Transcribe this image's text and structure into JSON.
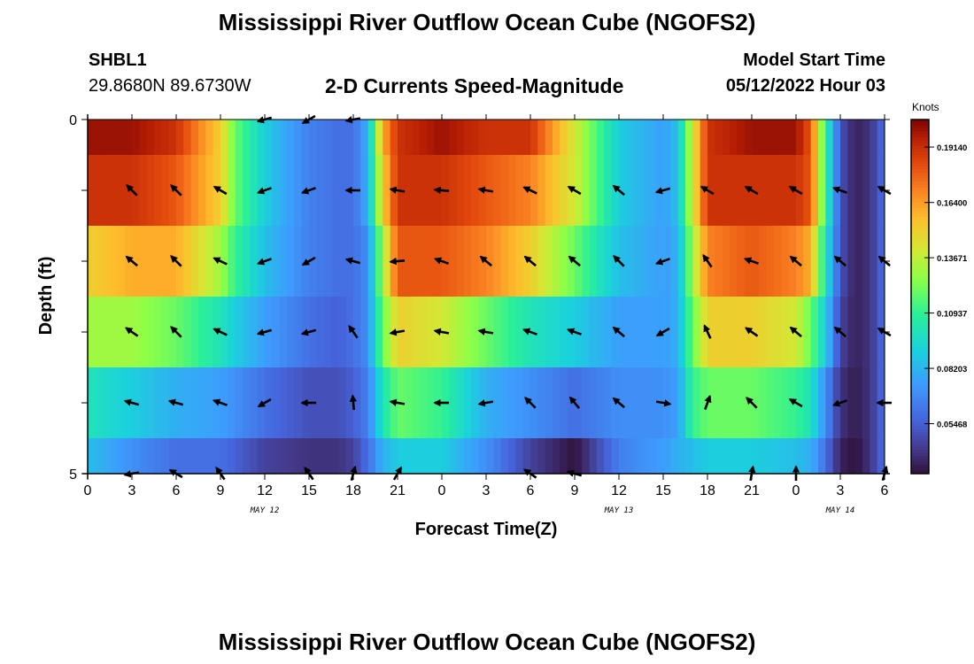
{
  "header": {
    "title": "Mississippi River Outflow Ocean Cube (NGOFS2)",
    "station": "SHBL1",
    "coords": "29.8680N  89.6730W",
    "subtitle": "2-D Currents Speed-Magnitude",
    "model_start_label": "Model Start Time",
    "model_start_value": "05/12/2022 Hour 03"
  },
  "footer": {
    "title": "Mississippi River Outflow Ocean Cube (NGOFS2)"
  },
  "chart_data": {
    "type": "heatmap",
    "title": "2-D Currents Speed-Magnitude",
    "xlabel": "Forecast Time(Z)",
    "ylabel": "Depth (ft)",
    "x_tick_labels": [
      "0",
      "3",
      "6",
      "9",
      "12",
      "15",
      "18",
      "21",
      "0",
      "3",
      "6",
      "9",
      "12",
      "15",
      "18",
      "21",
      "0",
      "3",
      "6"
    ],
    "x_range_hours": [
      0,
      54
    ],
    "date_labels": [
      {
        "text": "MAY 12",
        "hour": 12
      },
      {
        "text": "MAY 13",
        "hour": 36
      },
      {
        "text": "MAY 14",
        "hour": 51
      }
    ],
    "y_tick_labels": [
      "0",
      "5"
    ],
    "y_range": [
      0,
      5
    ],
    "colorbar": {
      "units": "Knots",
      "tick_labels": [
        "0.19140",
        "0.16400",
        "0.13671",
        "0.10937",
        "0.08203",
        "0.05468"
      ],
      "tick_values": [
        0.1914,
        0.164,
        0.13671,
        0.10937,
        0.08203,
        0.05468
      ],
      "range": [
        0.03,
        0.205
      ]
    },
    "anchors_hours": [
      0,
      3,
      6,
      9,
      10,
      12,
      15,
      17,
      18,
      19,
      20,
      21,
      24,
      27,
      30,
      33,
      36,
      39,
      40,
      41,
      42,
      45,
      48,
      49,
      50,
      51,
      52,
      53,
      54
    ],
    "speed_rows": [
      {
        "depth_band": "0.0-0.5",
        "speeds": [
          0.2,
          0.2,
          0.19,
          0.15,
          0.12,
          0.09,
          0.065,
          0.06,
          0.06,
          0.08,
          0.16,
          0.19,
          0.2,
          0.19,
          0.19,
          0.14,
          0.09,
          0.075,
          0.085,
          0.14,
          0.19,
          0.2,
          0.2,
          0.18,
          0.11,
          0.05,
          0.035,
          0.04,
          0.06
        ]
      },
      {
        "depth_band": "0.5-1.5",
        "speeds": [
          0.19,
          0.19,
          0.18,
          0.15,
          0.12,
          0.09,
          0.065,
          0.06,
          0.06,
          0.08,
          0.15,
          0.19,
          0.19,
          0.18,
          0.17,
          0.14,
          0.09,
          0.075,
          0.085,
          0.14,
          0.19,
          0.19,
          0.19,
          0.18,
          0.11,
          0.05,
          0.035,
          0.04,
          0.06
        ]
      },
      {
        "depth_band": "1.5-2.5",
        "speeds": [
          0.15,
          0.16,
          0.16,
          0.13,
          0.11,
          0.085,
          0.065,
          0.06,
          0.06,
          0.07,
          0.13,
          0.18,
          0.18,
          0.17,
          0.15,
          0.12,
          0.085,
          0.075,
          0.08,
          0.13,
          0.17,
          0.18,
          0.17,
          0.16,
          0.1,
          0.05,
          0.035,
          0.04,
          0.06
        ]
      },
      {
        "depth_band": "2.5-3.5",
        "speeds": [
          0.13,
          0.13,
          0.12,
          0.1,
          0.09,
          0.075,
          0.06,
          0.055,
          0.06,
          0.07,
          0.12,
          0.15,
          0.14,
          0.12,
          0.1,
          0.09,
          0.075,
          0.075,
          0.08,
          0.12,
          0.15,
          0.15,
          0.14,
          0.12,
          0.09,
          0.045,
          0.035,
          0.04,
          0.06
        ]
      },
      {
        "depth_band": "3.5-4.5",
        "speeds": [
          0.1,
          0.09,
          0.08,
          0.075,
          0.07,
          0.06,
          0.05,
          0.05,
          0.055,
          0.065,
          0.1,
          0.12,
          0.11,
          0.08,
          0.07,
          0.06,
          0.07,
          0.07,
          0.075,
          0.11,
          0.12,
          0.12,
          0.11,
          0.1,
          0.07,
          0.04,
          0.033,
          0.04,
          0.06
        ]
      },
      {
        "depth_band": "4.5-5.0",
        "speeds": [
          0.085,
          0.07,
          0.06,
          0.06,
          0.055,
          0.045,
          0.04,
          0.04,
          0.045,
          0.06,
          0.08,
          0.09,
          0.09,
          0.07,
          0.045,
          0.03,
          0.065,
          0.075,
          0.08,
          0.085,
          0.09,
          0.09,
          0.085,
          0.08,
          0.06,
          0.035,
          0.03,
          0.04,
          0.06
        ]
      }
    ],
    "vector_hours": [
      3,
      6,
      9,
      12,
      15,
      18,
      21,
      24,
      27,
      30,
      33,
      36,
      39,
      42,
      45,
      48,
      51,
      54
    ],
    "vector_rows": [
      {
        "depth": 0,
        "angles_deg": [
          null,
          null,
          null,
          195,
          210,
          190,
          null,
          null,
          null,
          null,
          null,
          null,
          null,
          null,
          null,
          null,
          null,
          null
        ]
      },
      {
        "depth": 1,
        "angles_deg": [
          135,
          135,
          150,
          200,
          200,
          180,
          170,
          175,
          170,
          155,
          150,
          140,
          195,
          150,
          150,
          150,
          160,
          150
        ]
      },
      {
        "depth": 2,
        "angles_deg": [
          140,
          135,
          155,
          200,
          210,
          165,
          185,
          160,
          140,
          140,
          140,
          135,
          200,
          125,
          160,
          140,
          140,
          140
        ]
      },
      {
        "depth": 3,
        "angles_deg": [
          145,
          135,
          155,
          195,
          195,
          125,
          190,
          170,
          170,
          160,
          160,
          140,
          210,
          115,
          145,
          140,
          140,
          150
        ]
      },
      {
        "depth": 4,
        "angles_deg": [
          165,
          165,
          160,
          210,
          180,
          95,
          170,
          180,
          190,
          135,
          130,
          140,
          350,
          70,
          135,
          150,
          200,
          180
        ]
      },
      {
        "depth": 5,
        "angles_deg": [
          190,
          150,
          125,
          null,
          125,
          75,
          60,
          null,
          null,
          145,
          165,
          null,
          null,
          null,
          80,
          90,
          null,
          75
        ]
      }
    ]
  }
}
